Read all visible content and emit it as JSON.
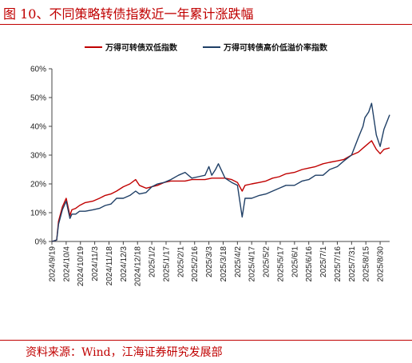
{
  "figure_title": "图 10、不同策略转债指数近一年累计涨跌幅",
  "source_note": "资料来源：Wind，江海证券研究发展部",
  "colors": {
    "title": "#c00000",
    "series_1": "#c00000",
    "series_2": "#1f3f66"
  },
  "chart_data": {
    "type": "line",
    "title": "",
    "xlabel": "",
    "ylabel": "",
    "ylim": [
      0,
      60
    ],
    "yticks": [
      "0%",
      "10%",
      "20%",
      "30%",
      "40%",
      "50%",
      "60%"
    ],
    "xticks": [
      "2024/9/19",
      "2024/10/4",
      "2024/10/19",
      "2024/11/3",
      "2024/11/18",
      "2024/12/3",
      "2024/12/18",
      "2025/1/2",
      "2025/1/17",
      "2025/2/1",
      "2025/2/16",
      "2025/3/3",
      "2025/3/18",
      "2025/4/2",
      "2025/4/17",
      "2025/5/2",
      "2025/5/17",
      "2025/6/1",
      "2025/6/16",
      "2025/7/1",
      "2025/7/16",
      "2025/7/31",
      "2025/8/15",
      "2025/8/30"
    ],
    "x_start": "2024/9/19",
    "x_end": "2025/9/9",
    "legend_position": "top",
    "series": [
      {
        "name": "万得可转债双低指数",
        "color": "#c00000",
        "x": [
          "2024/9/19",
          "2024/9/24",
          "2024/9/26",
          "2024/9/30",
          "2024/10/4",
          "2024/10/8",
          "2024/10/10",
          "2024/10/14",
          "2024/10/18",
          "2024/10/24",
          "2024/11/1",
          "2024/11/8",
          "2024/11/14",
          "2024/11/20",
          "2024/11/26",
          "2024/12/3",
          "2024/12/10",
          "2024/12/16",
          "2024/12/20",
          "2024/12/27",
          "2025/1/2",
          "2025/1/8",
          "2025/1/15",
          "2025/1/22",
          "2025/1/30",
          "2025/2/6",
          "2025/2/13",
          "2025/2/20",
          "2025/2/27",
          "2025/3/6",
          "2025/3/13",
          "2025/3/20",
          "2025/3/27",
          "2025/4/2",
          "2025/4/7",
          "2025/4/10",
          "2025/4/17",
          "2025/4/25",
          "2025/5/2",
          "2025/5/9",
          "2025/5/16",
          "2025/5/23",
          "2025/6/1",
          "2025/6/9",
          "2025/6/16",
          "2025/6/23",
          "2025/7/1",
          "2025/7/8",
          "2025/7/16",
          "2025/7/23",
          "2025/7/31",
          "2025/8/7",
          "2025/8/14",
          "2025/8/21",
          "2025/8/26",
          "2025/8/30",
          "2025/9/3",
          "2025/9/9"
        ],
        "values": [
          0,
          0.5,
          7,
          12,
          15,
          9,
          11,
          11.5,
          12.5,
          13.5,
          14,
          15,
          16,
          16.5,
          17.5,
          19,
          20,
          21.5,
          19.5,
          18.5,
          19,
          19.5,
          20.5,
          21,
          21,
          21,
          21.5,
          21.5,
          21.5,
          22,
          22,
          22,
          21.5,
          20.5,
          17.5,
          19.5,
          20,
          20.5,
          21,
          22,
          22.5,
          23.5,
          24,
          25,
          25.5,
          26,
          27,
          27.5,
          28,
          28.5,
          30,
          31,
          33,
          35,
          32,
          30.5,
          32,
          32.5
        ]
      },
      {
        "name": "万得可转债高价低溢价率指数",
        "color": "#1f3f66",
        "x": [
          "2024/9/19",
          "2024/9/24",
          "2024/9/26",
          "2024/9/30",
          "2024/10/4",
          "2024/10/8",
          "2024/10/10",
          "2024/10/14",
          "2024/10/18",
          "2024/10/24",
          "2024/11/1",
          "2024/11/8",
          "2024/11/14",
          "2024/11/20",
          "2024/11/26",
          "2024/12/3",
          "2024/12/10",
          "2024/12/16",
          "2024/12/20",
          "2024/12/27",
          "2025/1/2",
          "2025/1/8",
          "2025/1/15",
          "2025/1/22",
          "2025/1/30",
          "2025/2/6",
          "2025/2/13",
          "2025/2/20",
          "2025/2/27",
          "2025/3/3",
          "2025/3/6",
          "2025/3/10",
          "2025/3/13",
          "2025/3/20",
          "2025/3/27",
          "2025/4/2",
          "2025/4/7",
          "2025/4/10",
          "2025/4/17",
          "2025/4/25",
          "2025/5/2",
          "2025/5/9",
          "2025/5/16",
          "2025/5/23",
          "2025/6/1",
          "2025/6/9",
          "2025/6/16",
          "2025/6/23",
          "2025/7/1",
          "2025/7/8",
          "2025/7/16",
          "2025/7/23",
          "2025/7/31",
          "2025/8/7",
          "2025/8/12",
          "2025/8/14",
          "2025/8/18",
          "2025/8/21",
          "2025/8/26",
          "2025/8/30",
          "2025/9/3",
          "2025/9/9"
        ],
        "values": [
          0,
          0.5,
          6,
          11,
          14,
          8,
          9.5,
          9.5,
          10.5,
          10.5,
          11,
          11.5,
          12.5,
          13,
          15,
          15,
          16,
          17.5,
          16.5,
          17,
          19,
          20,
          20.5,
          21.5,
          23,
          24,
          22,
          22.5,
          23,
          26,
          23,
          25,
          27,
          22,
          20.5,
          19.5,
          8.5,
          15,
          15,
          16,
          16.5,
          17.5,
          18.5,
          19.5,
          19.5,
          21,
          21.5,
          23,
          23,
          25,
          26,
          28,
          30,
          36,
          40,
          43,
          45,
          48,
          37,
          33,
          39,
          44
        ]
      }
    ]
  }
}
